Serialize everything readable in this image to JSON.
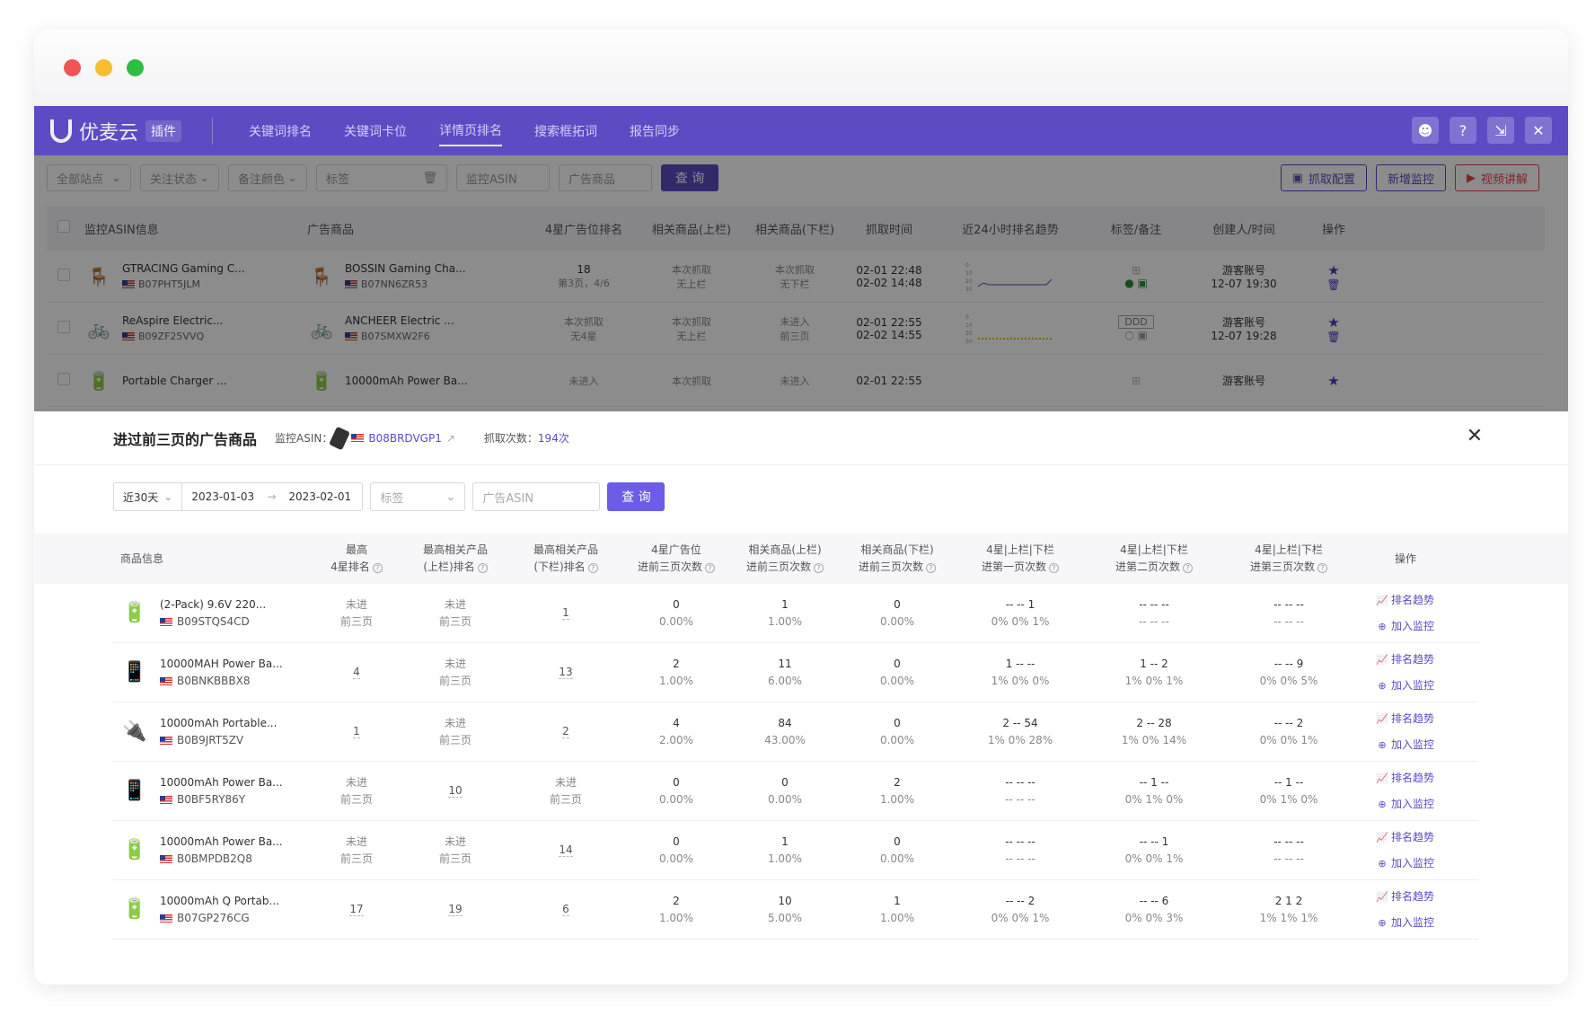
{
  "app": {
    "logo": "优麦云",
    "logo_sub": "插件",
    "nav": [
      "关键词排名",
      "关键词卡位",
      "详情页排名",
      "搜索框拓词",
      "报告同步"
    ],
    "filters": {
      "site": "全部站点",
      "follow": "关注状态",
      "note_color": "备注颜色",
      "tag": "标签",
      "asin_placeholder": "监控ASIN",
      "ad_placeholder": "广告商品",
      "query": "查 询",
      "crawl_config": "抓取配置",
      "add_monitor": "新增监控",
      "video": "视频讲解"
    },
    "table_headers": [
      "监控ASIN信息",
      "广告商品",
      "4星广告位排名",
      "相关商品(上栏)",
      "相关商品(下栏)",
      "抓取时间",
      "近24小时排名趋势",
      "标签/备注",
      "创建人/时间",
      "操作"
    ],
    "rows": [
      {
        "mon_title": "GTRACING Gaming C...",
        "mon_asin": "B07PHT5JLM",
        "ad_title": "BOSSIN Gaming Cha...",
        "ad_asin": "B07NN6ZR53",
        "rank": "18",
        "rank_sub": "第3页，4/6",
        "up": "本次抓取",
        "up_sub": "无上栏",
        "down": "本次抓取",
        "down_sub": "无下栏",
        "t1": "02-01 22:48",
        "t2": "02-02 14:48",
        "tag": "",
        "creator": "游客账号",
        "ctime": "12-07 19:30"
      },
      {
        "mon_title": "ReAspire Electric...",
        "mon_asin": "B09ZF25VVQ",
        "ad_title": "ANCHEER Electric ...",
        "ad_asin": "B07SMXW2F6",
        "rank": "本次抓取",
        "rank_sub": "无4星",
        "up": "本次抓取",
        "up_sub": "无上栏",
        "down": "未进入",
        "down_sub": "前三页",
        "t1": "02-01 22:55",
        "t2": "02-02 14:55",
        "tag": "DDD",
        "creator": "游客账号",
        "ctime": "12-07 19:28"
      },
      {
        "mon_title": "Portable Charger ...",
        "mon_asin": "",
        "ad_title": "10000mAh Power Ba...",
        "ad_asin": "",
        "rank": "未进入",
        "rank_sub": "",
        "up": "本次抓取",
        "up_sub": "",
        "down": "未进入",
        "down_sub": "",
        "t1": "02-01 22:55",
        "t2": "",
        "tag": "",
        "creator": "游客账号",
        "ctime": ""
      }
    ],
    "spark_ticks": [
      "0",
      "10",
      "20",
      "30"
    ]
  },
  "modal": {
    "title": "进过前三页的广告商品",
    "asin_label": "监控ASIN：",
    "asin": "B08BRDVGP1",
    "count_label": "抓取次数：",
    "count": "194次",
    "range_preset": "近30天",
    "date_from": "2023-01-03",
    "date_to": "2023-02-01",
    "tag_placeholder": "标签",
    "ad_asin_placeholder": "广告ASIN",
    "query": "查 询",
    "headers": [
      {
        "l1": "商品信息",
        "l2": ""
      },
      {
        "l1": "最高",
        "l2": "4星排名"
      },
      {
        "l1": "最高相关产品",
        "l2": "(上栏)排名"
      },
      {
        "l1": "最高相关产品",
        "l2": "(下栏)排名"
      },
      {
        "l1": "4星广告位",
        "l2": "进前三页次数"
      },
      {
        "l1": "相关商品(上栏)",
        "l2": "进前三页次数"
      },
      {
        "l1": "相关商品(下栏)",
        "l2": "进前三页次数"
      },
      {
        "l1": "4星|上栏|下栏",
        "l2": "进第一页次数"
      },
      {
        "l1": "4星|上栏|下栏",
        "l2": "进第二页次数"
      },
      {
        "l1": "4星|上栏|下栏",
        "l2": "进第三页次数"
      },
      {
        "l1": "操作",
        "l2": ""
      }
    ],
    "op_trend": "排名趋势",
    "op_add": "加入监控",
    "rows": [
      {
        "title": "(2-Pack) 9.6V 220...",
        "asin": "B09STQS4CD",
        "r4": [
          "未进",
          "前三页"
        ],
        "rup": [
          "未进",
          "前三页"
        ],
        "rdown": [
          "1",
          ""
        ],
        "c4": [
          "0",
          "0.00%"
        ],
        "cup": [
          "1",
          "1.00%"
        ],
        "cdown": [
          "0",
          "0.00%"
        ],
        "p1": [
          "-- -- 1",
          "0% 0% 1%"
        ],
        "p2": [
          "-- -- --",
          "-- -- --"
        ],
        "p3": [
          "-- -- --",
          "-- -- --"
        ],
        "icon": "🔋",
        "color": "#5aa860"
      },
      {
        "title": "10000MAH Power Ba...",
        "asin": "B0BNKBBBX8",
        "r4": [
          "4",
          ""
        ],
        "rup": [
          "未进",
          "前三页"
        ],
        "rdown": [
          "13",
          ""
        ],
        "c4": [
          "2",
          "1.00%"
        ],
        "cup": [
          "11",
          "6.00%"
        ],
        "cdown": [
          "0",
          "0.00%"
        ],
        "p1": [
          "1 -- --",
          "1% 0% 0%"
        ],
        "p2": [
          "1 -- 2",
          "1% 0% 1%"
        ],
        "p3": [
          "-- -- 9",
          "0% 0% 5%"
        ],
        "icon": "📱",
        "color": "#222"
      },
      {
        "title": "10000mAh Portable...",
        "asin": "B0B9JRT5ZV",
        "r4": [
          "1",
          ""
        ],
        "rup": [
          "未进",
          "前三页"
        ],
        "rdown": [
          "2",
          ""
        ],
        "c4": [
          "4",
          "2.00%"
        ],
        "cup": [
          "84",
          "43.00%"
        ],
        "cdown": [
          "0",
          "0.00%"
        ],
        "p1": [
          "2 -- 54",
          "1% 0% 28%"
        ],
        "p2": [
          "2 -- 28",
          "1% 0% 14%"
        ],
        "p3": [
          "-- -- 2",
          "0% 0% 1%"
        ],
        "icon": "🔌",
        "color": "#e99"
      },
      {
        "title": "10000mAh Power Ba...",
        "asin": "B0BF5RY86Y",
        "r4": [
          "未进",
          "前三页"
        ],
        "rup": [
          "10",
          ""
        ],
        "rdown": [
          "未进",
          "前三页"
        ],
        "c4": [
          "0",
          "0.00%"
        ],
        "cup": [
          "0",
          "0.00%"
        ],
        "cdown": [
          "2",
          "1.00%"
        ],
        "p1": [
          "-- -- --",
          "-- -- --"
        ],
        "p2": [
          "-- 1 --",
          "0% 1% 0%"
        ],
        "p3": [
          "-- 1 --",
          "0% 1% 0%"
        ],
        "icon": "📱",
        "color": "#333"
      },
      {
        "title": "10000mAh Power Ba...",
        "asin": "B0BMPDB2Q8",
        "r4": [
          "未进",
          "前三页"
        ],
        "rup": [
          "未进",
          "前三页"
        ],
        "rdown": [
          "14",
          ""
        ],
        "c4": [
          "0",
          "0.00%"
        ],
        "cup": [
          "1",
          "1.00%"
        ],
        "cdown": [
          "0",
          "0.00%"
        ],
        "p1": [
          "-- -- --",
          "-- -- --"
        ],
        "p2": [
          "-- -- 1",
          "0% 0% 1%"
        ],
        "p3": [
          "-- -- --",
          "-- -- --"
        ],
        "icon": "🔋",
        "color": "#3b4cd6"
      },
      {
        "title": "10000mAh Q Portab...",
        "asin": "B07GP276CG",
        "r4": [
          "17",
          ""
        ],
        "rup": [
          "19",
          ""
        ],
        "rdown": [
          "6",
          ""
        ],
        "c4": [
          "2",
          "1.00%"
        ],
        "cup": [
          "10",
          "5.00%"
        ],
        "cdown": [
          "1",
          "1.00%"
        ],
        "p1": [
          "-- -- 2",
          "0% 0% 1%"
        ],
        "p2": [
          "-- -- 6",
          "0% 0% 3%"
        ],
        "p3": [
          "2 1 2",
          "1% 1% 1%"
        ],
        "icon": "🔋",
        "color": "#999"
      }
    ]
  }
}
